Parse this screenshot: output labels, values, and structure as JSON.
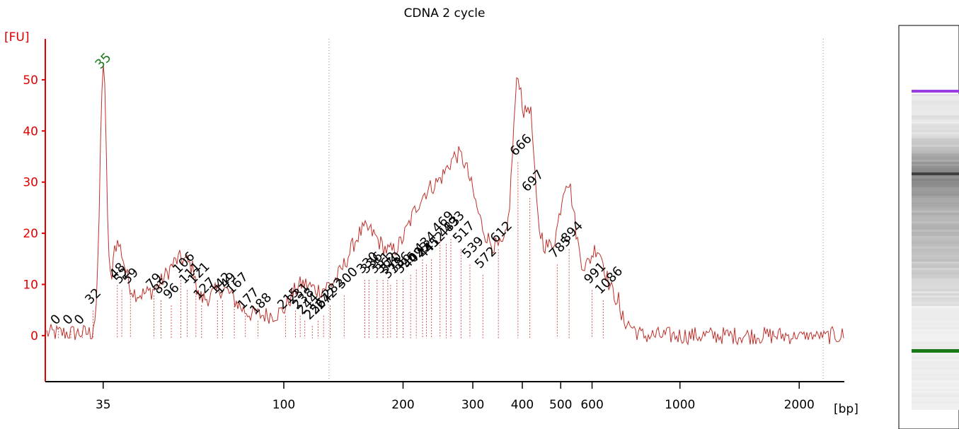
{
  "chart_data": {
    "type": "line",
    "title": "CDNA 2 cycle",
    "ylabel": "[FU]",
    "xlabel": "[bp]",
    "ylim": [
      -9,
      58
    ],
    "yticks": [
      0,
      10,
      20,
      30,
      40,
      50
    ],
    "x_scale": "log",
    "xlim": [
      25,
      2600
    ],
    "xticks": [
      "35",
      "100",
      "200",
      "300",
      "400",
      "500",
      "600",
      "1000",
      "2000"
    ],
    "line_color": "#c0302a",
    "marker_peak": {
      "label": "35",
      "x": 35,
      "y": 52,
      "color": "#1a7a1a"
    },
    "peak_labels": [
      {
        "label": "0",
        "x": 27,
        "y": 2
      },
      {
        "label": "0",
        "x": 29,
        "y": 2
      },
      {
        "label": "0",
        "x": 31,
        "y": 2
      },
      {
        "label": "32",
        "x": 33,
        "y": 6
      },
      {
        "label": "48",
        "x": 38,
        "y": 11
      },
      {
        "label": "52",
        "x": 39,
        "y": 10
      },
      {
        "label": "59",
        "x": 41,
        "y": 10
      },
      {
        "label": "79",
        "x": 47,
        "y": 9
      },
      {
        "label": "85",
        "x": 49,
        "y": 8
      },
      {
        "label": "96",
        "x": 52,
        "y": 7
      },
      {
        "label": "106",
        "x": 55,
        "y": 12
      },
      {
        "label": "111",
        "x": 57,
        "y": 10
      },
      {
        "label": "121",
        "x": 60,
        "y": 10
      },
      {
        "label": "127",
        "x": 62,
        "y": 7
      },
      {
        "label": "142",
        "x": 68,
        "y": 8
      },
      {
        "label": "149",
        "x": 70,
        "y": 8
      },
      {
        "label": "167",
        "x": 75,
        "y": 8
      },
      {
        "label": "177",
        "x": 80,
        "y": 5
      },
      {
        "label": "188",
        "x": 86,
        "y": 4
      },
      {
        "label": "215",
        "x": 101,
        "y": 5
      },
      {
        "label": "231",
        "x": 107,
        "y": 6
      },
      {
        "label": "238",
        "x": 110,
        "y": 5
      },
      {
        "label": "244",
        "x": 113,
        "y": 4
      },
      {
        "label": "256",
        "x": 118,
        "y": 3
      },
      {
        "label": "264",
        "x": 122,
        "y": 4
      },
      {
        "label": "272",
        "x": 126,
        "y": 5
      },
      {
        "label": "282",
        "x": 131,
        "y": 7
      },
      {
        "label": "300",
        "x": 142,
        "y": 9
      },
      {
        "label": "330",
        "x": 160,
        "y": 12
      },
      {
        "label": "336",
        "x": 164,
        "y": 12
      },
      {
        "label": "351",
        "x": 172,
        "y": 12
      },
      {
        "label": "362",
        "x": 178,
        "y": 12
      },
      {
        "label": "370",
        "x": 183,
        "y": 12
      },
      {
        "label": "375",
        "x": 186,
        "y": 11
      },
      {
        "label": "386",
        "x": 193,
        "y": 12
      },
      {
        "label": "396",
        "x": 200,
        "y": 12
      },
      {
        "label": "409",
        "x": 209,
        "y": 13
      },
      {
        "label": "423",
        "x": 216,
        "y": 14
      },
      {
        "label": "434",
        "x": 224,
        "y": 16
      },
      {
        "label": "441",
        "x": 229,
        "y": 15
      },
      {
        "label": "452",
        "x": 236,
        "y": 16
      },
      {
        "label": "469",
        "x": 248,
        "y": 20
      },
      {
        "label": "483",
        "x": 257,
        "y": 19
      },
      {
        "label": "493",
        "x": 264,
        "y": 20
      },
      {
        "label": "517",
        "x": 280,
        "y": 18
      },
      {
        "label": "539",
        "x": 295,
        "y": 15
      },
      {
        "label": "572",
        "x": 318,
        "y": 13
      },
      {
        "label": "612",
        "x": 348,
        "y": 18
      },
      {
        "label": "666",
        "x": 390,
        "y": 35
      },
      {
        "label": "697",
        "x": 418,
        "y": 28
      },
      {
        "label": "785",
        "x": 490,
        "y": 15
      },
      {
        "label": "894",
        "x": 525,
        "y": 18
      },
      {
        "label": "991",
        "x": 600,
        "y": 10
      },
      {
        "label": "1086",
        "x": 640,
        "y": 8
      }
    ]
  },
  "gel_lane": {
    "upper_marker_color": "#9b3ee0",
    "lower_marker_color": "#1a7a1a"
  }
}
